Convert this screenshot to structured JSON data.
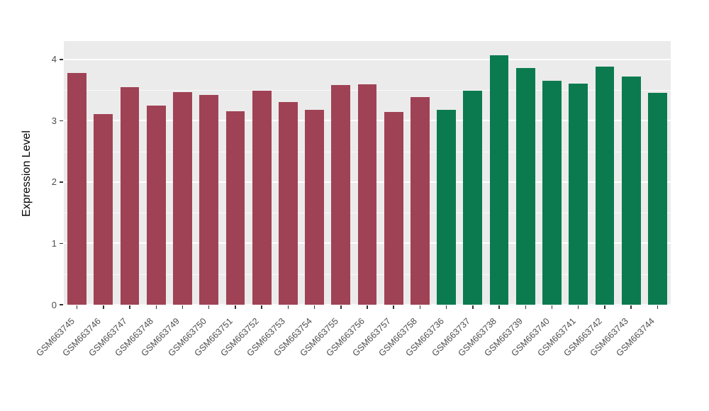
{
  "chart_data": {
    "type": "bar",
    "title": "",
    "xlabel": "",
    "ylabel": "Expression Level",
    "ylim": [
      0,
      4.3
    ],
    "yticks": [
      0,
      1,
      2,
      3,
      4
    ],
    "grid": "on",
    "legend": "none",
    "panel_background": "#ebebeb",
    "gridline_color": "#ffffff",
    "colors": {
      "red": "#A04255",
      "green": "#0B7B4F"
    },
    "bars": [
      {
        "label": "GSM663745",
        "value": 3.78,
        "group": "red"
      },
      {
        "label": "GSM663746",
        "value": 3.11,
        "group": "red"
      },
      {
        "label": "GSM663747",
        "value": 3.55,
        "group": "red"
      },
      {
        "label": "GSM663748",
        "value": 3.25,
        "group": "red"
      },
      {
        "label": "GSM663749",
        "value": 3.47,
        "group": "red"
      },
      {
        "label": "GSM663750",
        "value": 3.42,
        "group": "red"
      },
      {
        "label": "GSM663751",
        "value": 3.16,
        "group": "red"
      },
      {
        "label": "GSM663752",
        "value": 3.49,
        "group": "red"
      },
      {
        "label": "GSM663753",
        "value": 3.31,
        "group": "red"
      },
      {
        "label": "GSM663754",
        "value": 3.18,
        "group": "red"
      },
      {
        "label": "GSM663755",
        "value": 3.58,
        "group": "red"
      },
      {
        "label": "GSM663756",
        "value": 3.6,
        "group": "red"
      },
      {
        "label": "GSM663757",
        "value": 3.14,
        "group": "red"
      },
      {
        "label": "GSM663758",
        "value": 3.39,
        "group": "red"
      },
      {
        "label": "GSM663736",
        "value": 3.18,
        "group": "green"
      },
      {
        "label": "GSM663737",
        "value": 3.49,
        "group": "green"
      },
      {
        "label": "GSM663738",
        "value": 4.07,
        "group": "green"
      },
      {
        "label": "GSM663739",
        "value": 3.86,
        "group": "green"
      },
      {
        "label": "GSM663740",
        "value": 3.65,
        "group": "green"
      },
      {
        "label": "GSM663741",
        "value": 3.61,
        "group": "green"
      },
      {
        "label": "GSM663742",
        "value": 3.88,
        "group": "green"
      },
      {
        "label": "GSM663743",
        "value": 3.72,
        "group": "green"
      },
      {
        "label": "GSM663744",
        "value": 3.46,
        "group": "green"
      }
    ]
  }
}
